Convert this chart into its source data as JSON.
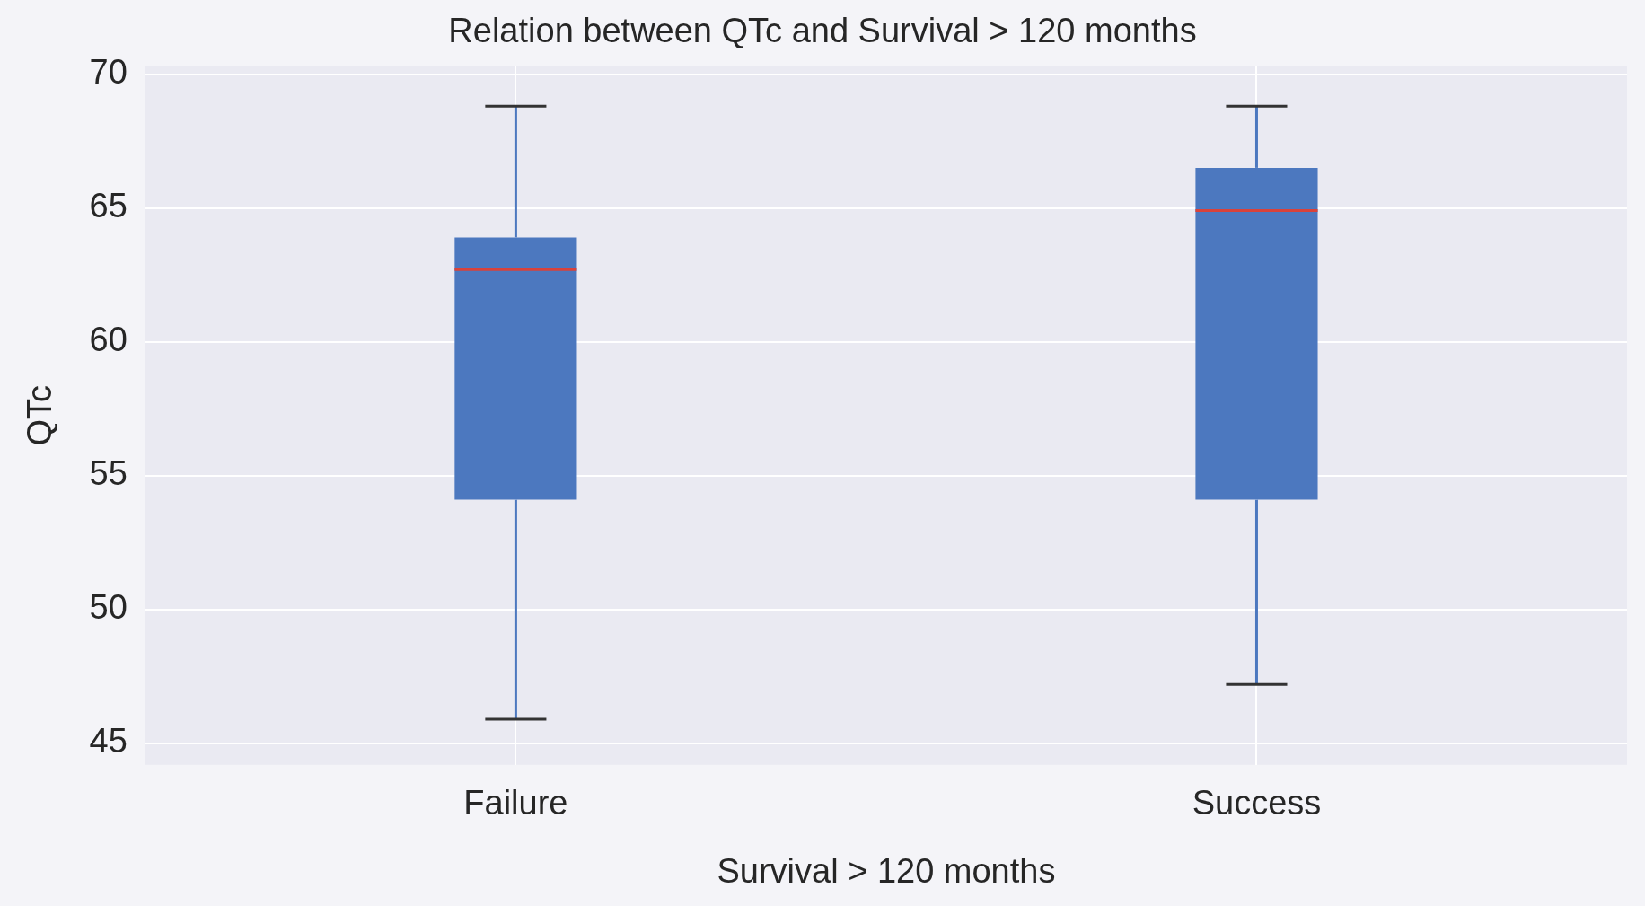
{
  "chart_data": {
    "type": "box",
    "title": "Relation between QTc and Survival > 120 months",
    "xlabel": "Survival > 120 months",
    "ylabel": "QTc",
    "categories": [
      "Failure",
      "Success"
    ],
    "color": "#4c78bf",
    "boxes": [
      {
        "low": 45.9,
        "q1": 54.1,
        "median": 62.7,
        "q3": 63.9,
        "high": 68.8
      },
      {
        "low": 47.2,
        "q1": 54.1,
        "median": 64.9,
        "q3": 66.5,
        "high": 68.8
      }
    ],
    "ylim": [
      44.2,
      70.3
    ],
    "yticks": [
      45,
      50,
      55,
      60,
      65,
      70
    ],
    "grid": true,
    "legend": false
  }
}
